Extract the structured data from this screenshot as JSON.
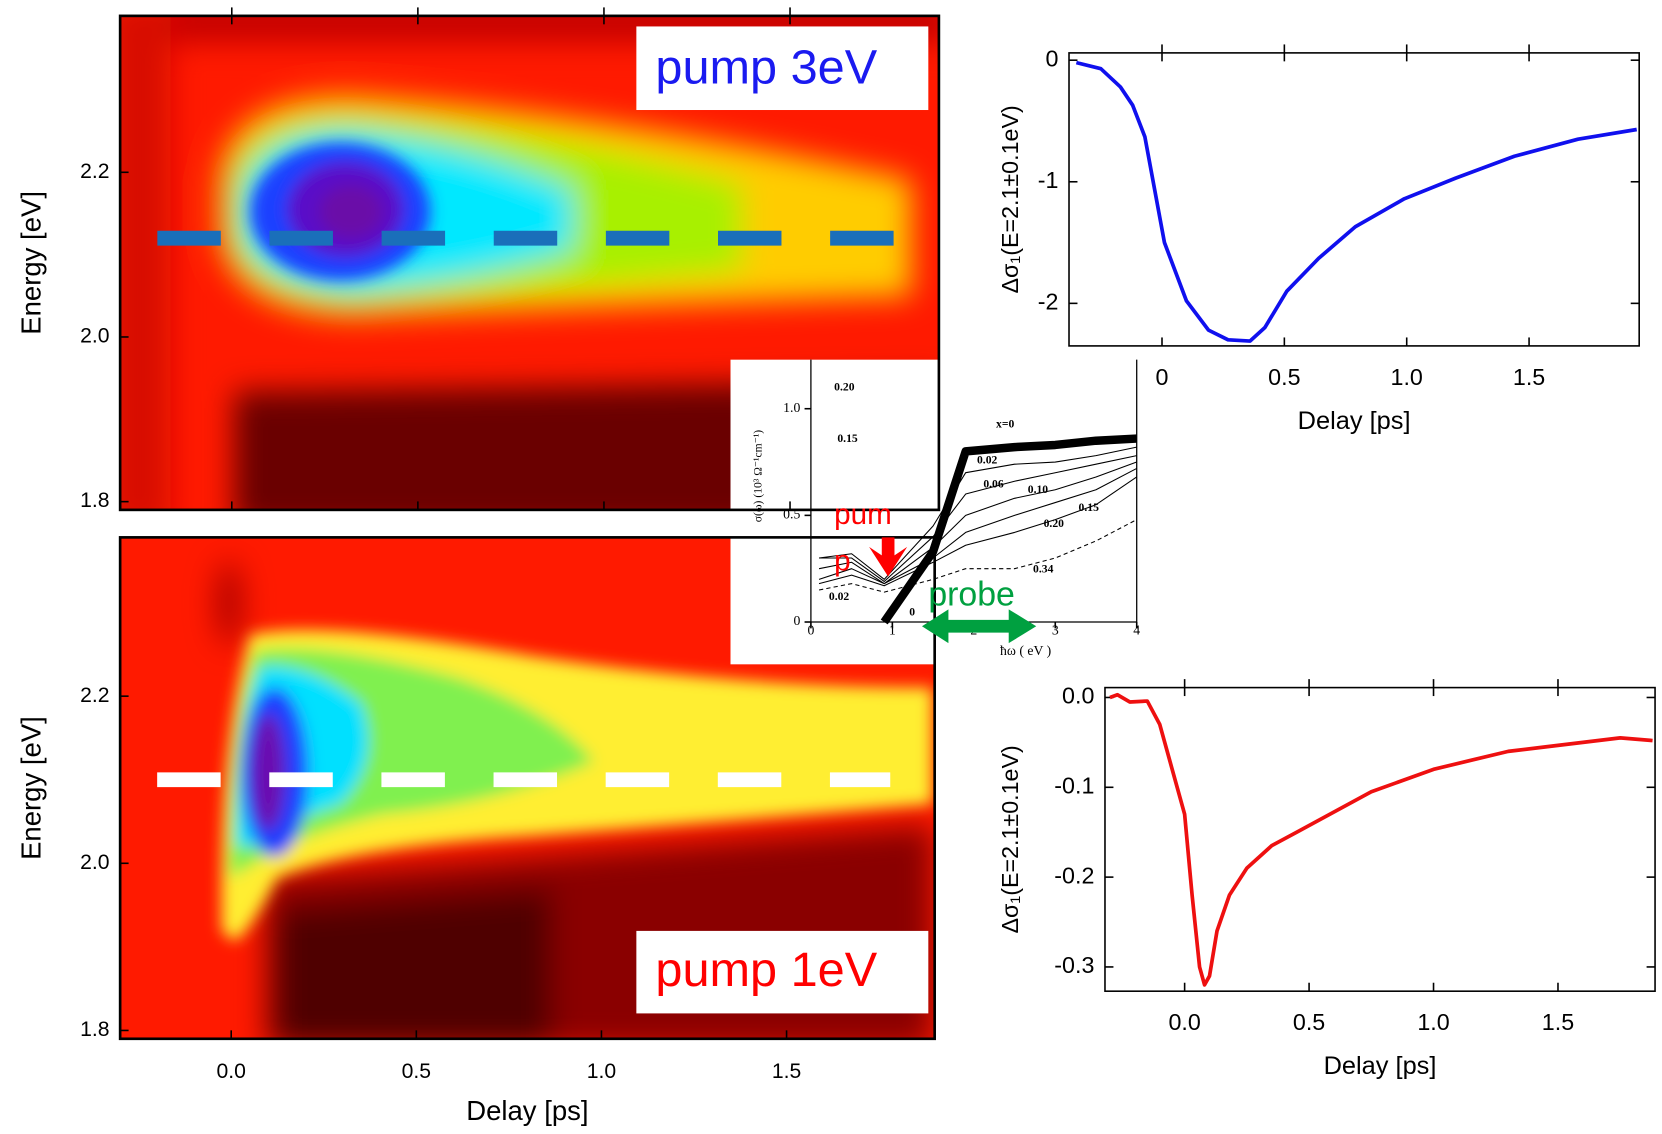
{
  "chart_data": [
    {
      "type": "heatmap",
      "annotation": "pump 3eV",
      "annotation_color": "#1a1af0",
      "ylabel": "Energy [eV]",
      "xlim": [
        -0.3,
        1.9
      ],
      "ylim": [
        1.79,
        2.39
      ],
      "xticks": [
        0,
        0.5,
        1,
        1.5
      ],
      "yticks": [
        1.8,
        {
          "value": 2,
          "label": "2.0"
        },
        2.2
      ],
      "cut_energy": 2.12,
      "cut_delay": [
        -0.2,
        1.78
      ],
      "cut_color": "#1a6fba"
    },
    {
      "type": "heatmap",
      "annotation": "pump 1eV",
      "annotation_color": "#ff0000",
      "ylabel": "Energy [eV]",
      "xlabel": "Delay [ps]",
      "xlim": [
        -0.3,
        1.9
      ],
      "ylim": [
        1.79,
        2.39
      ],
      "xticks": [
        {
          "value": 0,
          "label": "0.0"
        },
        0.5,
        {
          "value": 1,
          "label": "1.0"
        },
        1.5
      ],
      "yticks": [
        1.8,
        {
          "value": 2,
          "label": "2.0"
        },
        2.2
      ],
      "cut_energy": 2.1,
      "cut_delay": [
        -0.2,
        1.78
      ],
      "cut_color": "#ffffff"
    },
    {
      "type": "line",
      "ylabel": "Δσ₁(E=2.1±0.1eV)",
      "xlabel": "Delay [ps]",
      "color": "#1010ee",
      "x": [
        -0.35,
        -0.25,
        -0.17,
        -0.12,
        -0.07,
        0.01,
        0.1,
        0.19,
        0.27,
        0.36,
        0.42,
        0.51,
        0.64,
        0.79,
        0.99,
        1.2,
        1.44,
        1.7,
        1.94
      ],
      "values": [
        -0.02,
        -0.07,
        -0.22,
        -0.37,
        -0.63,
        -1.5,
        -1.98,
        -2.22,
        -2.3,
        -2.31,
        -2.2,
        -1.9,
        -1.63,
        -1.37,
        -1.14,
        -0.97,
        -0.79,
        -0.65,
        -0.57
      ],
      "xlim": [
        -0.38,
        1.95
      ],
      "ylim": [
        -2.35,
        0.06
      ],
      "xticks": [
        0,
        0.5,
        {
          "value": 1,
          "label": "1.0"
        },
        1.5
      ],
      "yticks": [
        0,
        -1,
        -2
      ]
    },
    {
      "type": "line",
      "ylabel": "Δσ₁(E=2.1±0.1eV)",
      "xlabel": "Delay [ps]",
      "color": "#ee1010",
      "x": [
        -0.3,
        -0.27,
        -0.22,
        -0.15,
        -0.1,
        -0.05,
        0,
        0.03,
        0.06,
        0.08,
        0.1,
        0.13,
        0.18,
        0.25,
        0.35,
        0.45,
        0.55,
        0.65,
        0.75,
        0.85,
        1,
        1.15,
        1.3,
        1.45,
        1.6,
        1.75,
        1.88
      ],
      "values": [
        0,
        0.003,
        -0.005,
        -0.004,
        -0.03,
        -0.08,
        -0.13,
        -0.22,
        -0.3,
        -0.32,
        -0.31,
        -0.26,
        -0.22,
        -0.19,
        -0.165,
        -0.15,
        -0.135,
        -0.12,
        -0.105,
        -0.095,
        -0.08,
        -0.07,
        -0.06,
        -0.055,
        -0.05,
        -0.045,
        -0.048
      ],
      "xlim": [
        -0.32,
        1.89
      ],
      "ylim": [
        -0.327,
        0.011
      ],
      "xticks": [
        {
          "value": 0,
          "label": "0.0"
        },
        0.5,
        {
          "value": 1,
          "label": "1.0"
        },
        1.5
      ],
      "yticks": [
        {
          "value": 0,
          "label": "0.0"
        },
        -0.1,
        -0.2,
        -0.3
      ]
    },
    {
      "type": "spectra",
      "xlabel": "ħω ( eV )",
      "ylabel": "σ(ω) (10³ Ω⁻¹cm⁻¹)",
      "xlim": [
        0,
        4
      ],
      "ylim": [
        0,
        1.23
      ],
      "xticks": [
        0,
        1,
        2,
        3,
        4
      ],
      "yticks": [
        0,
        0.5,
        {
          "value": 1,
          "label": "1.0"
        }
      ],
      "x": [
        0.1,
        0.5,
        0.9,
        1.5,
        1.9,
        2.5,
        3,
        3.5,
        4
      ],
      "series": [
        {
          "name": "x=0",
          "values": [
            null,
            null,
            0,
            0.33,
            0.8,
            0.82,
            0.83,
            0.85,
            0.86
          ]
        },
        {
          "name": "0.02",
          "values": [
            0.3,
            0.32,
            0.2,
            0.45,
            0.7,
            0.74,
            0.75,
            0.78,
            0.82
          ]
        },
        {
          "name": "0.06",
          "values": [
            0.3,
            0.3,
            0.19,
            0.4,
            0.6,
            0.66,
            0.7,
            0.74,
            0.78
          ]
        },
        {
          "name": "0.10",
          "values": [
            0.25,
            0.28,
            0.18,
            0.35,
            0.5,
            0.58,
            0.62,
            0.68,
            0.75
          ]
        },
        {
          "name": "0.15",
          "values": [
            0.2,
            0.25,
            0.18,
            0.3,
            0.42,
            0.5,
            0.56,
            0.62,
            0.72
          ]
        },
        {
          "name": "0.20",
          "values": [
            0.18,
            0.22,
            0.17,
            0.28,
            0.36,
            0.42,
            0.48,
            0.55,
            0.68
          ]
        },
        {
          "name": "0.34",
          "values": [
            0.15,
            0.18,
            0.14,
            0.2,
            0.25,
            0.25,
            0.3,
            0.38,
            0.48
          ]
        }
      ],
      "left_labels": [
        "0.20",
        "0.15",
        "0.02",
        "0"
      ],
      "pump_label": [
        "pum",
        "p"
      ],
      "probe_label": "probe"
    }
  ]
}
